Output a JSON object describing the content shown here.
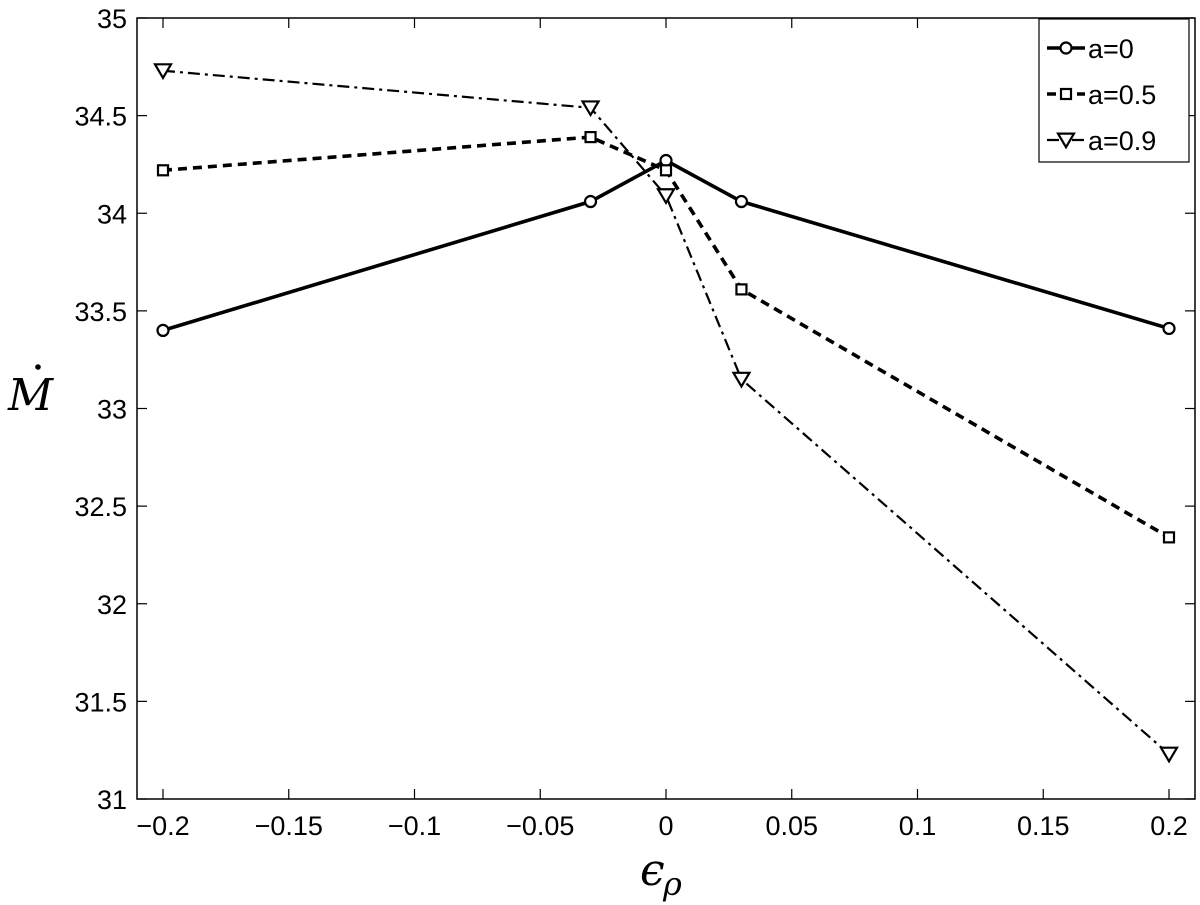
{
  "chart_data": {
    "type": "line",
    "title": "",
    "xlabel": "ϵρ",
    "ylabel": "Ṁ",
    "xlabel_main": "ϵ",
    "xlabel_sub": "ρ",
    "ylabel_main": "M",
    "xlim": [
      -0.2,
      0.2
    ],
    "ylim": [
      31,
      35
    ],
    "x": [
      -0.2,
      -0.03,
      0,
      0.03,
      0.2
    ],
    "xticks": [
      -0.2,
      -0.15,
      -0.1,
      -0.05,
      0,
      0.05,
      0.1,
      0.15,
      0.2
    ],
    "xtick_labels": [
      "−0.2",
      "−0.15",
      "−0.1",
      "−0.05",
      "0",
      "0.05",
      "0.1",
      "0.15",
      "0.2"
    ],
    "yticks": [
      31,
      31.5,
      32,
      32.5,
      33,
      33.5,
      34,
      34.5,
      35
    ],
    "ytick_labels": [
      "31",
      "31.5",
      "32",
      "32.5",
      "33",
      "33.5",
      "34",
      "34.5",
      "35"
    ],
    "grid": false,
    "legend_position": "top-right",
    "series": [
      {
        "name": "a=0",
        "values": [
          33.4,
          34.06,
          34.27,
          34.06,
          33.41
        ],
        "line_style": "solid",
        "marker": "circle",
        "color": "#000000"
      },
      {
        "name": "a=0.5",
        "values": [
          34.22,
          34.39,
          34.22,
          33.61,
          32.34
        ],
        "line_style": "dashed",
        "marker": "square",
        "color": "#000000"
      },
      {
        "name": "a=0.9",
        "values": [
          34.73,
          34.54,
          34.09,
          33.15,
          31.23
        ],
        "line_style": "dashdot",
        "marker": "triangle-down",
        "color": "#000000"
      }
    ]
  }
}
